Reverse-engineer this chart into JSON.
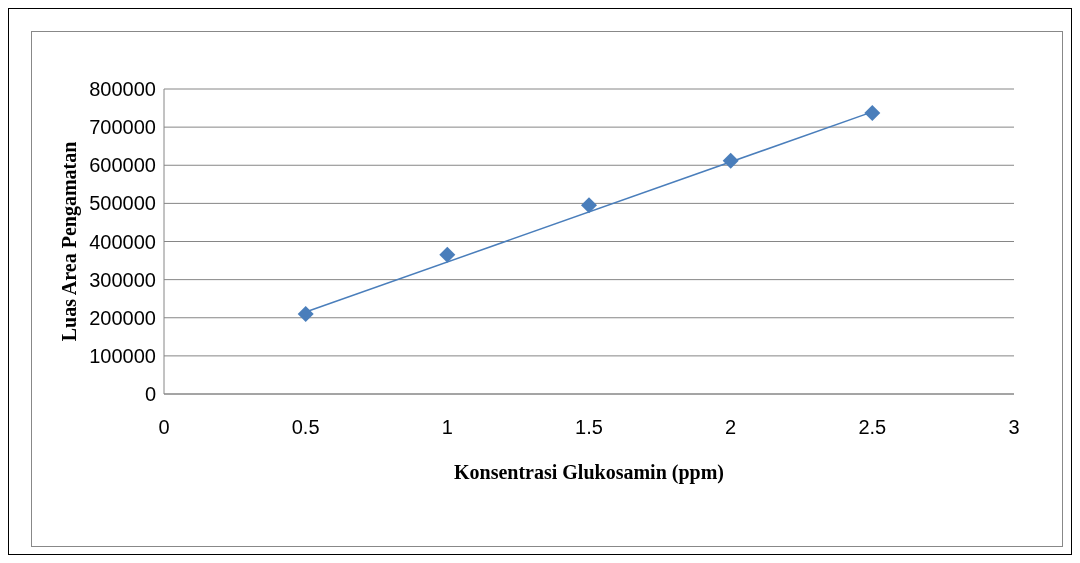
{
  "chart_data": {
    "type": "scatter",
    "xlabel": "Konsentrasi Glukosamin (ppm)",
    "ylabel": "Luas Area Pengamatan",
    "x": [
      0.5,
      1,
      1.5,
      2,
      2.5
    ],
    "xlim": [
      0,
      3
    ],
    "xticks": [
      0,
      0.5,
      1,
      1.5,
      2,
      2.5,
      3
    ],
    "ylim": [
      0,
      800000
    ],
    "yticks": [
      0,
      100000,
      200000,
      300000,
      400000,
      500000,
      600000,
      700000,
      800000
    ],
    "grid": "y",
    "legend": false,
    "series": [
      {
        "marker": "diamond",
        "color": "#4a7ebb",
        "values": [
          210000,
          365000,
          495000,
          612000,
          737000
        ]
      },
      {
        "type": "line",
        "marker": "none",
        "color": "#4a7ebb",
        "x": [
          0.5,
          2.5
        ],
        "values": [
          215000,
          740000
        ]
      }
    ]
  }
}
